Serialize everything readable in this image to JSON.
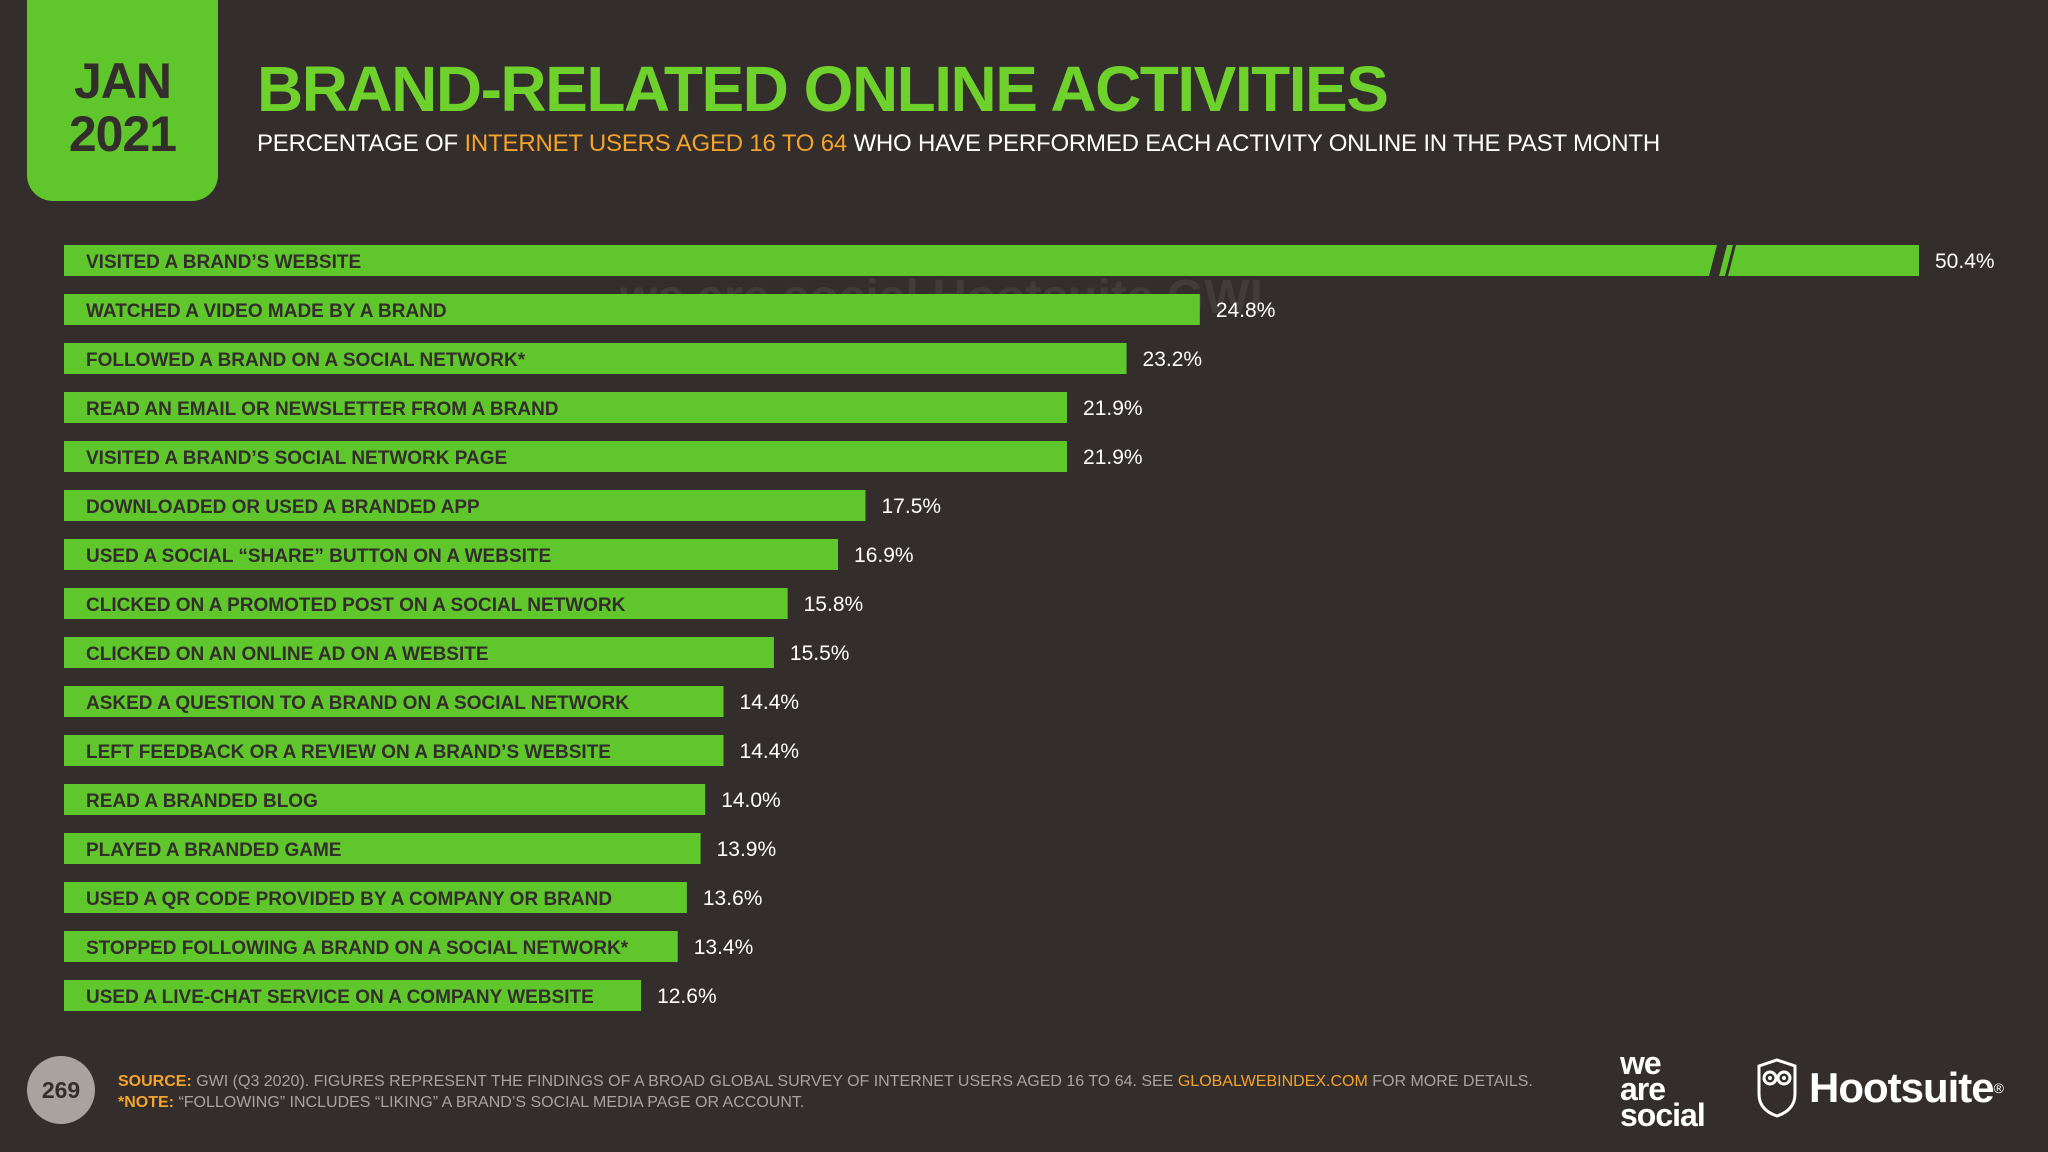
{
  "header": {
    "month": "JAN",
    "year": "2021",
    "title": "BRAND-RELATED ONLINE ACTIVITIES",
    "subtitle_pre": "PERCENTAGE OF ",
    "subtitle_highlight": "INTERNET USERS AGED 16 TO 64",
    "subtitle_post": " WHO HAVE PERFORMED EACH ACTIVITY ONLINE IN THE PAST MONTH"
  },
  "chart_data": {
    "type": "bar",
    "orientation": "horizontal",
    "axis_break_on_first_bar": true,
    "categories": [
      "VISITED A BRAND’S WEBSITE",
      "WATCHED A VIDEO MADE BY A BRAND",
      "FOLLOWED A BRAND ON A SOCIAL NETWORK*",
      "READ AN EMAIL OR NEWSLETTER FROM A BRAND",
      "VISITED A BRAND’S SOCIAL NETWORK PAGE",
      "DOWNLOADED OR USED A BRANDED APP",
      "USED A SOCIAL “SHARE” BUTTON ON A WEBSITE",
      "CLICKED ON A PROMOTED POST ON A SOCIAL NETWORK",
      "CLICKED ON AN ONLINE AD ON A WEBSITE",
      "ASKED A QUESTION TO A BRAND ON A SOCIAL NETWORK",
      "LEFT FEEDBACK OR A REVIEW ON A BRAND’S WEBSITE",
      "READ A BRANDED BLOG",
      "PLAYED A BRANDED GAME",
      "USED A QR CODE PROVIDED BY A COMPANY OR BRAND",
      "STOPPED FOLLOWING A BRAND ON A SOCIAL NETWORK*",
      "USED A LIVE-CHAT SERVICE ON A COMPANY WEBSITE"
    ],
    "values": [
      50.4,
      24.8,
      23.2,
      21.9,
      21.9,
      17.5,
      16.9,
      15.8,
      15.5,
      14.4,
      14.4,
      14.0,
      13.9,
      13.6,
      13.4,
      12.6
    ],
    "value_labels": [
      "50.4%",
      "24.8%",
      "23.2%",
      "21.9%",
      "21.9%",
      "17.5%",
      "16.9%",
      "15.8%",
      "15.5%",
      "14.4%",
      "14.4%",
      "14.0%",
      "13.9%",
      "13.6%",
      "13.4%",
      "12.6%"
    ],
    "bar_color": "#5fc72b",
    "label_color": "#332d2b",
    "value_color": "#ffffff"
  },
  "watermark": {
    "brands": "we are social   Hootsuite   GWI."
  },
  "footer": {
    "page": "269",
    "source_label": "SOURCE:",
    "source_text": " GWI (Q3 2020). FIGURES REPRESENT THE FINDINGS OF A BROAD GLOBAL SURVEY OF INTERNET USERS AGED 16 TO 64. SEE ",
    "source_link": "GLOBALWEBINDEX.COM",
    "source_tail": " FOR MORE DETAILS.",
    "note_label": "*NOTE:",
    "note_text": " “FOLLOWING” INCLUDES “LIKING” A BRAND’S SOCIAL MEDIA PAGE OR ACCOUNT.",
    "logo_was": [
      "we",
      "are",
      "social"
    ],
    "logo_hootsuite": "Hootsuite",
    "logo_reg": "®",
    "owl_icon": "hootsuite-owl-icon"
  }
}
